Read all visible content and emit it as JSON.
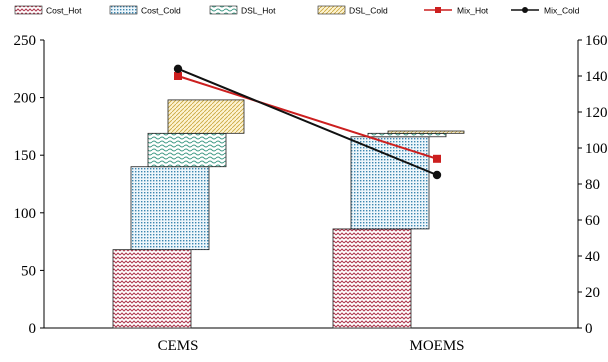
{
  "chart_data": {
    "type": "bar",
    "categories": [
      "CEMS",
      "MOEMS"
    ],
    "stacked": true,
    "legend_position": "top",
    "grid": false,
    "y_left": {
      "min": 0,
      "max": 250,
      "ticks": [
        0,
        50,
        100,
        150,
        200,
        250
      ]
    },
    "y_right": {
      "min": 0,
      "max": 160,
      "ticks": [
        0,
        20,
        40,
        60,
        80,
        100,
        120,
        140,
        160
      ]
    },
    "bar_series": [
      {
        "name": "Cost_Hot",
        "values": [
          68,
          86
        ],
        "color": "#b03a50",
        "pattern": "zigzag"
      },
      {
        "name": "Cost_Cold",
        "values": [
          72,
          80
        ],
        "color": "#4a8fb5",
        "pattern": "dots"
      },
      {
        "name": "DSL_Hot",
        "values": [
          29,
          3
        ],
        "color": "#3f9a86",
        "pattern": "waves"
      },
      {
        "name": "DSL_Cold",
        "values": [
          29,
          2
        ],
        "color": "#c9a63a",
        "pattern": "diagonal"
      }
    ],
    "line_series": [
      {
        "name": "Mix_Hot",
        "axis": "right",
        "values": [
          140,
          94
        ],
        "color": "#cc1f1f",
        "marker": "square"
      },
      {
        "name": "Mix_Cold",
        "axis": "right",
        "values": [
          144,
          85
        ],
        "color": "#111111",
        "marker": "circle"
      }
    ]
  }
}
